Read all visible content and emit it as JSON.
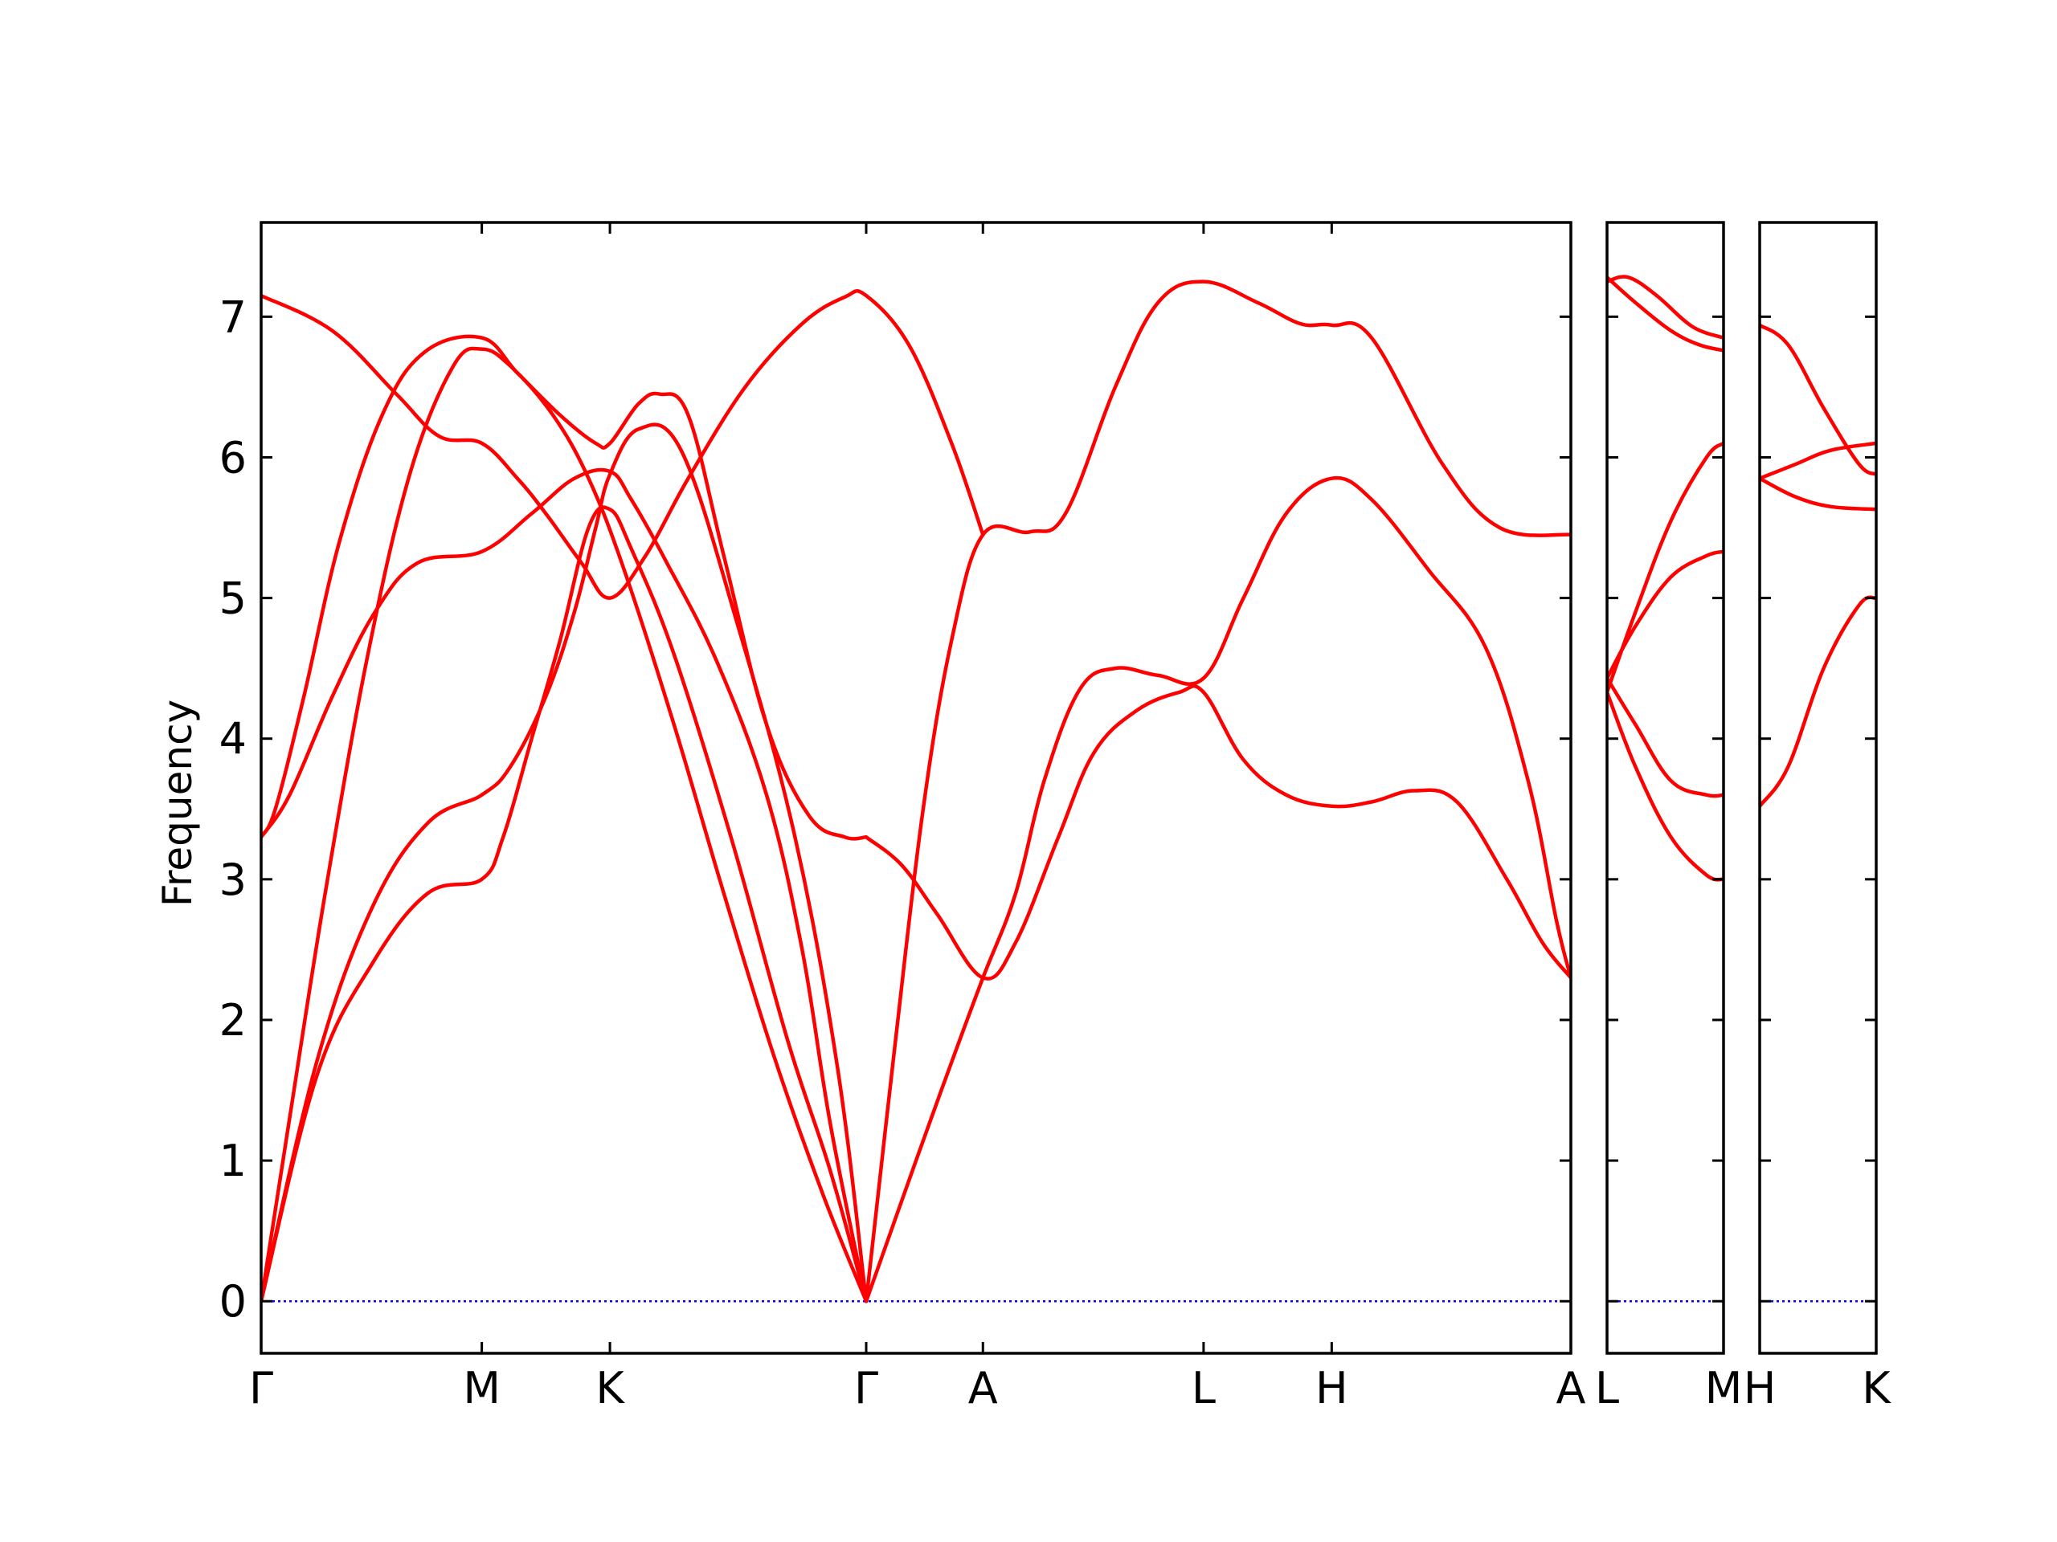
{
  "chart_data": {
    "type": "line",
    "title": "",
    "ylabel": "Frequency",
    "xlabel": "",
    "ylim": [
      -0.37,
      7.67
    ],
    "yticks": [
      0,
      1,
      2,
      3,
      4,
      5,
      6,
      7
    ],
    "grid": false,
    "colors": {
      "bands": "#ff0000",
      "zero_line": "#0000ff",
      "frame": "#000000"
    },
    "panels": [
      {
        "xlim": [
          0,
          9.2
        ],
        "ticks": [
          {
            "x": 0.0,
            "label": "Γ"
          },
          {
            "x": 1.55,
            "label": "M"
          },
          {
            "x": 2.45,
            "label": "K"
          },
          {
            "x": 4.25,
            "label": "Γ"
          },
          {
            "x": 5.07,
            "label": "A"
          },
          {
            "x": 6.62,
            "label": "L"
          },
          {
            "x": 7.52,
            "label": "H"
          },
          {
            "x": 9.2,
            "label": "A"
          }
        ],
        "series": [
          {
            "values": [
              [
                0,
                0
              ],
              [
                0.39,
                1.6
              ],
              [
                0.78,
                2.4
              ],
              [
                1.17,
                2.9
              ],
              [
                1.55,
                3.0
              ],
              [
                1.7,
                3.3
              ],
              [
                1.9,
                4.0
              ],
              [
                2.1,
                4.7
              ],
              [
                2.3,
                5.5
              ],
              [
                2.45,
                5.63
              ],
              [
                2.6,
                5.35
              ],
              [
                2.9,
                4.6
              ],
              [
                3.3,
                3.3
              ],
              [
                3.7,
                1.85
              ],
              [
                4.0,
                0.92
              ],
              [
                4.25,
                0
              ]
            ]
          },
          {
            "values": [
              [
                0,
                0
              ],
              [
                0.39,
                1.7
              ],
              [
                0.78,
                2.8
              ],
              [
                1.17,
                3.4
              ],
              [
                1.55,
                3.6
              ],
              [
                1.75,
                3.8
              ],
              [
                2.0,
                4.3
              ],
              [
                2.2,
                4.9
              ],
              [
                2.35,
                5.5
              ],
              [
                2.45,
                5.88
              ],
              [
                2.65,
                6.2
              ],
              [
                2.95,
                6.05
              ],
              [
                3.35,
                4.8
              ],
              [
                3.75,
                3.3
              ],
              [
                4.05,
                1.65
              ],
              [
                4.25,
                0
              ]
            ]
          },
          {
            "values": [
              [
                0,
                0
              ],
              [
                0.2,
                1.3
              ],
              [
                0.45,
                2.9
              ],
              [
                0.75,
                4.6
              ],
              [
                1.05,
                5.9
              ],
              [
                1.35,
                6.65
              ],
              [
                1.55,
                6.77
              ],
              [
                1.75,
                6.65
              ],
              [
                2.05,
                6.3
              ],
              [
                2.3,
                5.85
              ],
              [
                2.55,
                5.2
              ],
              [
                2.9,
                4.1
              ],
              [
                3.25,
                2.9
              ],
              [
                3.6,
                1.75
              ],
              [
                3.95,
                0.75
              ],
              [
                4.25,
                0
              ]
            ]
          },
          {
            "values": [
              [
                0,
                3.3
              ],
              [
                0.1,
                3.5
              ],
              [
                0.3,
                4.3
              ],
              [
                0.55,
                5.4
              ],
              [
                0.85,
                6.3
              ],
              [
                1.15,
                6.75
              ],
              [
                1.55,
                6.85
              ],
              [
                1.8,
                6.6
              ],
              [
                2.1,
                6.3
              ],
              [
                2.35,
                6.1
              ],
              [
                2.45,
                6.1
              ],
              [
                2.65,
                6.38
              ],
              [
                2.8,
                6.45
              ],
              [
                3.0,
                6.3
              ],
              [
                3.25,
                5.3
              ],
              [
                3.55,
                4.1
              ],
              [
                3.85,
                3.45
              ],
              [
                4.1,
                3.3
              ],
              [
                4.25,
                3.3
              ]
            ]
          },
          {
            "values": [
              [
                0,
                3.3
              ],
              [
                0.2,
                3.6
              ],
              [
                0.5,
                4.3
              ],
              [
                0.8,
                4.9
              ],
              [
                1.1,
                5.25
              ],
              [
                1.55,
                5.33
              ],
              [
                1.9,
                5.6
              ],
              [
                2.2,
                5.85
              ],
              [
                2.45,
                5.9
              ],
              [
                2.6,
                5.7
              ],
              [
                2.85,
                5.25
              ],
              [
                3.2,
                4.55
              ],
              [
                3.55,
                3.6
              ],
              [
                3.8,
                2.5
              ],
              [
                4.0,
                1.25
              ],
              [
                4.25,
                0
              ]
            ]
          },
          {
            "values": [
              [
                0,
                7.15
              ],
              [
                0.5,
                6.9
              ],
              [
                0.95,
                6.45
              ],
              [
                1.25,
                6.15
              ],
              [
                1.55,
                6.1
              ],
              [
                1.8,
                5.85
              ],
              [
                2.0,
                5.6
              ],
              [
                2.25,
                5.25
              ],
              [
                2.45,
                5.0
              ],
              [
                2.7,
                5.3
              ],
              [
                3.0,
                5.85
              ],
              [
                3.4,
                6.5
              ],
              [
                3.8,
                6.95
              ],
              [
                4.1,
                7.14
              ],
              [
                4.25,
                7.15
              ],
              [
                4.55,
                6.8
              ],
              [
                4.85,
                6.1
              ],
              [
                5.07,
                5.45
              ]
            ]
          },
          {
            "values": [
              [
                4.25,
                0
              ],
              [
                4.45,
                1.8
              ],
              [
                4.65,
                3.5
              ],
              [
                4.85,
                4.7
              ],
              [
                5.07,
                5.45
              ],
              [
                5.4,
                5.47
              ],
              [
                5.65,
                5.6
              ],
              [
                6.0,
                6.5
              ],
              [
                6.3,
                7.1
              ],
              [
                6.62,
                7.25
              ],
              [
                7.0,
                7.1
              ],
              [
                7.3,
                6.95
              ],
              [
                7.52,
                6.94
              ],
              [
                7.8,
                6.85
              ],
              [
                8.3,
                5.95
              ],
              [
                8.7,
                5.5
              ],
              [
                9.2,
                5.45
              ]
            ]
          },
          {
            "values": [
              [
                4.25,
                3.3
              ],
              [
                4.5,
                3.1
              ],
              [
                4.75,
                2.75
              ],
              [
                5.07,
                2.3
              ],
              [
                5.3,
                2.55
              ],
              [
                5.6,
                3.3
              ],
              [
                5.85,
                3.9
              ],
              [
                6.15,
                4.2
              ],
              [
                6.45,
                4.33
              ],
              [
                6.62,
                4.33
              ],
              [
                6.9,
                3.85
              ],
              [
                7.2,
                3.6
              ],
              [
                7.52,
                3.52
              ],
              [
                7.8,
                3.55
              ],
              [
                8.1,
                3.63
              ],
              [
                8.4,
                3.55
              ],
              [
                8.75,
                3.0
              ],
              [
                9.0,
                2.55
              ],
              [
                9.2,
                2.3
              ]
            ]
          },
          {
            "values": [
              [
                4.25,
                0
              ],
              [
                4.6,
                1.0
              ],
              [
                4.85,
                1.7
              ],
              [
                5.07,
                2.3
              ],
              [
                5.3,
                2.9
              ],
              [
                5.5,
                3.7
              ],
              [
                5.75,
                4.35
              ],
              [
                6.0,
                4.5
              ],
              [
                6.3,
                4.45
              ],
              [
                6.62,
                4.43
              ],
              [
                6.9,
                5.0
              ],
              [
                7.2,
                5.6
              ],
              [
                7.52,
                5.85
              ],
              [
                7.8,
                5.7
              ],
              [
                8.2,
                5.2
              ],
              [
                8.6,
                4.65
              ],
              [
                8.9,
                3.7
              ],
              [
                9.1,
                2.7
              ],
              [
                9.2,
                2.3
              ]
            ]
          }
        ],
        "zero_line": true
      },
      {
        "xlim": [
          0,
          0.82
        ],
        "ticks": [
          {
            "x": 0.0,
            "label": "L"
          },
          {
            "x": 0.82,
            "label": "M"
          }
        ],
        "series": [
          {
            "values": [
              [
                0,
                7.25
              ],
              [
                0.15,
                7.28
              ],
              [
                0.35,
                7.15
              ],
              [
                0.6,
                6.93
              ],
              [
                0.82,
                6.85
              ]
            ]
          },
          {
            "values": [
              [
                0,
                7.28
              ],
              [
                0.2,
                7.1
              ],
              [
                0.45,
                6.9
              ],
              [
                0.65,
                6.8
              ],
              [
                0.82,
                6.76
              ]
            ]
          },
          {
            "values": [
              [
                0,
                4.33
              ],
              [
                0.2,
                4.9
              ],
              [
                0.45,
                5.55
              ],
              [
                0.7,
                6.0
              ],
              [
                0.82,
                6.1
              ]
            ]
          },
          {
            "values": [
              [
                0,
                4.43
              ],
              [
                0.2,
                4.8
              ],
              [
                0.45,
                5.15
              ],
              [
                0.7,
                5.3
              ],
              [
                0.82,
                5.33
              ]
            ]
          },
          {
            "values": [
              [
                0,
                4.43
              ],
              [
                0.2,
                4.1
              ],
              [
                0.45,
                3.7
              ],
              [
                0.7,
                3.6
              ],
              [
                0.82,
                3.6
              ]
            ]
          },
          {
            "values": [
              [
                0,
                4.33
              ],
              [
                0.2,
                3.8
              ],
              [
                0.45,
                3.3
              ],
              [
                0.7,
                3.03
              ],
              [
                0.82,
                3.0
              ]
            ]
          }
        ],
        "zero_line": true
      },
      {
        "xlim": [
          0,
          0.82
        ],
        "ticks": [
          {
            "x": 0.0,
            "label": "H"
          },
          {
            "x": 0.82,
            "label": "K"
          }
        ],
        "series": [
          {
            "values": [
              [
                0,
                6.94
              ],
              [
                0.2,
                6.8
              ],
              [
                0.45,
                6.35
              ],
              [
                0.7,
                5.95
              ],
              [
                0.82,
                5.88
              ]
            ]
          },
          {
            "values": [
              [
                0,
                5.85
              ],
              [
                0.25,
                5.95
              ],
              [
                0.5,
                6.05
              ],
              [
                0.82,
                6.1
              ]
            ]
          },
          {
            "values": [
              [
                0,
                5.85
              ],
              [
                0.25,
                5.72
              ],
              [
                0.5,
                5.65
              ],
              [
                0.82,
                5.63
              ]
            ]
          },
          {
            "values": [
              [
                0,
                3.52
              ],
              [
                0.2,
                3.8
              ],
              [
                0.45,
                4.5
              ],
              [
                0.7,
                4.95
              ],
              [
                0.82,
                5.0
              ]
            ]
          }
        ],
        "zero_line": true
      }
    ]
  }
}
